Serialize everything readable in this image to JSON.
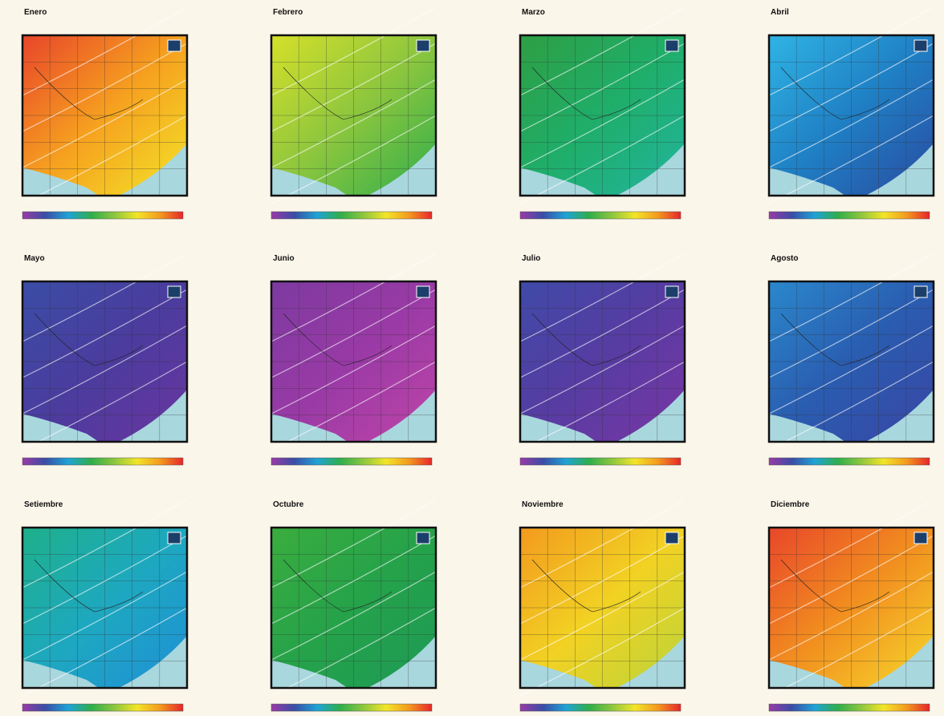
{
  "panels": [
    {
      "title": "Enero"
    },
    {
      "title": "Febrero"
    },
    {
      "title": "Marzo"
    },
    {
      "title": "Abril"
    },
    {
      "title": "Mayo"
    },
    {
      "title": "Junio"
    },
    {
      "title": "Julio"
    },
    {
      "title": "Agosto"
    },
    {
      "title": "Setiembre"
    },
    {
      "title": "Octubre"
    },
    {
      "title": "Noviembre"
    },
    {
      "title": "Diciembre"
    }
  ]
}
